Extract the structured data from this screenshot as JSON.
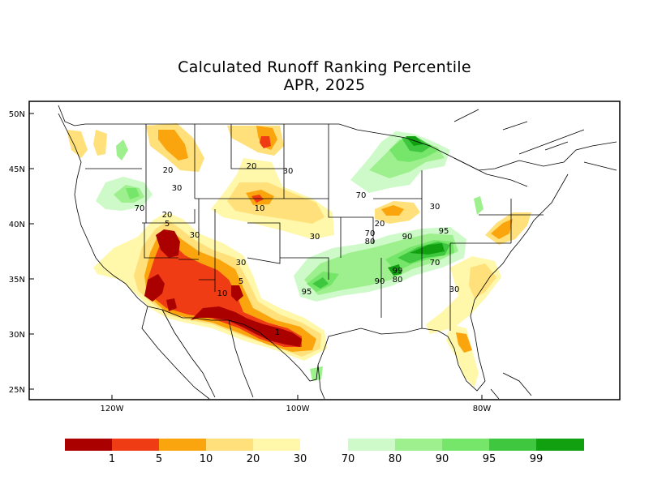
{
  "title": "Calculated Runoff Ranking Percentile",
  "subtitle": "APR, 2025",
  "lat_labels": [
    "50N",
    "45N",
    "40N",
    "35N",
    "30N",
    "25N"
  ],
  "lon_labels": [
    "120W",
    "100W",
    "80W"
  ],
  "contour_labels": [
    "20",
    "30",
    "20",
    "30",
    "10",
    "30",
    "20",
    "5",
    "30",
    "30",
    "10",
    "5",
    "1",
    "70",
    "70",
    "20",
    "70",
    "80",
    "90",
    "95",
    "70",
    "99",
    "90",
    "80",
    "95",
    "30",
    "30"
  ],
  "legend": {
    "labels": [
      "1",
      "5",
      "10",
      "20",
      "30",
      "70",
      "80",
      "90",
      "95",
      "99"
    ],
    "dry_colors": [
      "#aa0000",
      "#f03c14",
      "#fba50e",
      "#ffe07a",
      "#fff7aa"
    ],
    "wet_colors": [
      "#cdfac8",
      "#9ef08e",
      "#76e66a",
      "#3fc83f",
      "#10a010"
    ]
  }
}
